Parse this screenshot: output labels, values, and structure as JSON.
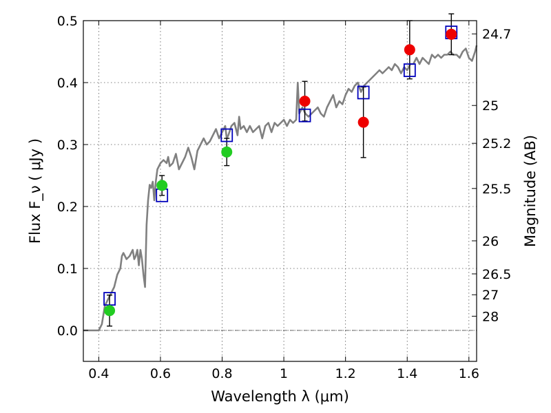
{
  "chart_data": {
    "type": "scatter",
    "title": "",
    "xlabel": "Wavelength  λ (μm)",
    "ylabel": "Flux  F_ν  ( μJy )",
    "y2label": "Magnitude (AB)",
    "xlim": [
      0.35,
      1.625
    ],
    "ylim": [
      -0.05,
      0.5
    ],
    "x_ticks": [
      0.4,
      0.6,
      0.8,
      1.0,
      1.2,
      1.4,
      1.6
    ],
    "x_tick_labels": [
      "0.4",
      "0.6",
      "0.8",
      "1",
      "1.2",
      "1.4",
      "1.6"
    ],
    "y_ticks": [
      0.0,
      0.1,
      0.2,
      0.3,
      0.4,
      0.5
    ],
    "y_tick_labels": [
      "0.0",
      "0.1",
      "0.2",
      "0.3",
      "0.4",
      "0.5"
    ],
    "magnitude_ticks": [
      {
        "label": "24.7",
        "mag": 24.7
      },
      {
        "label": "25",
        "mag": 25.0
      },
      {
        "label": "25.2",
        "mag": 25.2
      },
      {
        "label": "25.5",
        "mag": 25.5
      },
      {
        "label": "26",
        "mag": 26.0
      },
      {
        "label": "26.5",
        "mag": 26.5
      },
      {
        "label": "27",
        "mag": 27.0
      },
      {
        "label": "28",
        "mag": 28.0
      }
    ],
    "grid": true,
    "zero_line": 0.0,
    "series": [
      {
        "kind": "line",
        "color": "#808080",
        "x": [
          0.35,
          0.4,
          0.41,
          0.42,
          0.43,
          0.44,
          0.45,
          0.46,
          0.47,
          0.475,
          0.48,
          0.49,
          0.5,
          0.51,
          0.515,
          0.52,
          0.525,
          0.53,
          0.535,
          0.54,
          0.545,
          0.55,
          0.555,
          0.56,
          0.565,
          0.57,
          0.575,
          0.58,
          0.585,
          0.59,
          0.6,
          0.61,
          0.62,
          0.625,
          0.63,
          0.64,
          0.65,
          0.66,
          0.67,
          0.68,
          0.69,
          0.7,
          0.71,
          0.72,
          0.73,
          0.74,
          0.75,
          0.76,
          0.77,
          0.78,
          0.79,
          0.8,
          0.81,
          0.815,
          0.82,
          0.83,
          0.84,
          0.85,
          0.855,
          0.86,
          0.87,
          0.88,
          0.89,
          0.9,
          0.91,
          0.92,
          0.93,
          0.94,
          0.95,
          0.96,
          0.97,
          0.98,
          0.99,
          1.0,
          1.01,
          1.02,
          1.03,
          1.04,
          1.045,
          1.05,
          1.06,
          1.07,
          1.08,
          1.09,
          1.1,
          1.11,
          1.12,
          1.13,
          1.14,
          1.15,
          1.16,
          1.17,
          1.18,
          1.19,
          1.2,
          1.21,
          1.22,
          1.23,
          1.24,
          1.25,
          1.26,
          1.27,
          1.28,
          1.29,
          1.3,
          1.31,
          1.32,
          1.33,
          1.34,
          1.35,
          1.36,
          1.37,
          1.38,
          1.39,
          1.4,
          1.41,
          1.42,
          1.43,
          1.44,
          1.45,
          1.46,
          1.47,
          1.48,
          1.49,
          1.5,
          1.51,
          1.52,
          1.53,
          1.54,
          1.55,
          1.56,
          1.57,
          1.58,
          1.59,
          1.6,
          1.61,
          1.62,
          1.625
        ],
        "y": [
          0.0,
          0.0,
          0.01,
          0.04,
          0.05,
          0.06,
          0.07,
          0.09,
          0.1,
          0.12,
          0.125,
          0.115,
          0.12,
          0.13,
          0.115,
          0.12,
          0.13,
          0.105,
          0.13,
          0.115,
          0.09,
          0.07,
          0.17,
          0.21,
          0.235,
          0.23,
          0.24,
          0.21,
          0.24,
          0.26,
          0.27,
          0.275,
          0.27,
          0.28,
          0.265,
          0.27,
          0.285,
          0.26,
          0.27,
          0.28,
          0.295,
          0.28,
          0.26,
          0.29,
          0.3,
          0.31,
          0.3,
          0.305,
          0.315,
          0.325,
          0.31,
          0.32,
          0.33,
          0.31,
          0.315,
          0.33,
          0.335,
          0.315,
          0.345,
          0.325,
          0.33,
          0.32,
          0.33,
          0.32,
          0.325,
          0.33,
          0.31,
          0.33,
          0.335,
          0.32,
          0.335,
          0.33,
          0.335,
          0.34,
          0.33,
          0.34,
          0.335,
          0.34,
          0.4,
          0.35,
          0.36,
          0.35,
          0.345,
          0.35,
          0.355,
          0.36,
          0.35,
          0.345,
          0.36,
          0.37,
          0.38,
          0.36,
          0.37,
          0.365,
          0.38,
          0.39,
          0.385,
          0.395,
          0.4,
          0.385,
          0.395,
          0.4,
          0.405,
          0.41,
          0.415,
          0.42,
          0.415,
          0.42,
          0.425,
          0.42,
          0.43,
          0.425,
          0.415,
          0.425,
          0.42,
          0.43,
          0.43,
          0.44,
          0.43,
          0.44,
          0.435,
          0.43,
          0.445,
          0.44,
          0.445,
          0.44,
          0.445,
          0.445,
          0.45,
          0.445,
          0.445,
          0.44,
          0.45,
          0.455,
          0.44,
          0.435,
          0.45,
          0.46
        ]
      },
      {
        "kind": "markers",
        "marker": "circle",
        "color": "#22cc22",
        "points": [
          {
            "x": 0.435,
            "y": 0.032,
            "err": 0.025
          },
          {
            "x": 0.605,
            "y": 0.234,
            "err": 0.016
          },
          {
            "x": 0.815,
            "y": 0.288,
            "err": 0.022
          }
        ]
      },
      {
        "kind": "markers",
        "marker": "circle",
        "color": "#ee0000",
        "points": [
          {
            "x": 1.068,
            "y": 0.37,
            "err": 0.032
          },
          {
            "x": 1.258,
            "y": 0.336,
            "err": 0.057
          },
          {
            "x": 1.408,
            "y": 0.453,
            "err": 0.047
          },
          {
            "x": 1.543,
            "y": 0.478,
            "err": 0.033
          }
        ]
      },
      {
        "kind": "markers",
        "marker": "square-open",
        "color": "#0000bb",
        "points": [
          {
            "x": 0.435,
            "y": 0.051
          },
          {
            "x": 0.605,
            "y": 0.218
          },
          {
            "x": 0.815,
            "y": 0.315
          },
          {
            "x": 1.068,
            "y": 0.347
          },
          {
            "x": 1.258,
            "y": 0.384
          },
          {
            "x": 1.408,
            "y": 0.42
          },
          {
            "x": 1.543,
            "y": 0.481
          }
        ]
      }
    ]
  }
}
